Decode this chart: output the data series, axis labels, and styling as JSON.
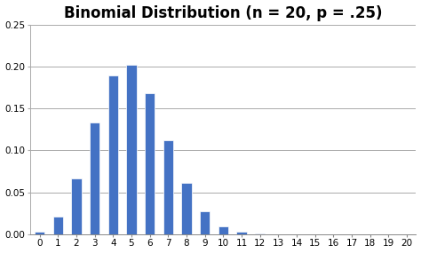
{
  "title": "Binomial Distribution (n = 20, p = .25)",
  "x_values": [
    0,
    1,
    2,
    3,
    4,
    5,
    6,
    7,
    8,
    9,
    10,
    11,
    12,
    13,
    14,
    15,
    16,
    17,
    18,
    19,
    20
  ],
  "pmf_values": [
    0.003171,
    0.021141,
    0.06694,
    0.13388,
    0.189848,
    0.20235,
    0.168625,
    0.112417,
    0.060902,
    0.027068,
    0.009922,
    0.00298,
    0.000734,
    0.000147,
    2.4e-05,
    3e-06,
    0.0,
    0.0,
    0.0,
    0.0,
    0.0
  ],
  "bar_color": "#4472C4",
  "bar_edgecolor": "#FFFFFF",
  "ylim": [
    0,
    0.25
  ],
  "yticks": [
    0.0,
    0.05,
    0.1,
    0.15,
    0.2,
    0.25
  ],
  "xlim": [
    -0.5,
    20.5
  ],
  "xticks": [
    0,
    1,
    2,
    3,
    4,
    5,
    6,
    7,
    8,
    9,
    10,
    11,
    12,
    13,
    14,
    15,
    16,
    17,
    18,
    19,
    20
  ],
  "title_fontsize": 12,
  "tick_fontsize": 7.5,
  "background_color": "#FFFFFF",
  "plot_bg_color": "#FFFFFF",
  "grid_color": "#AAAAAA",
  "bar_width": 0.55
}
